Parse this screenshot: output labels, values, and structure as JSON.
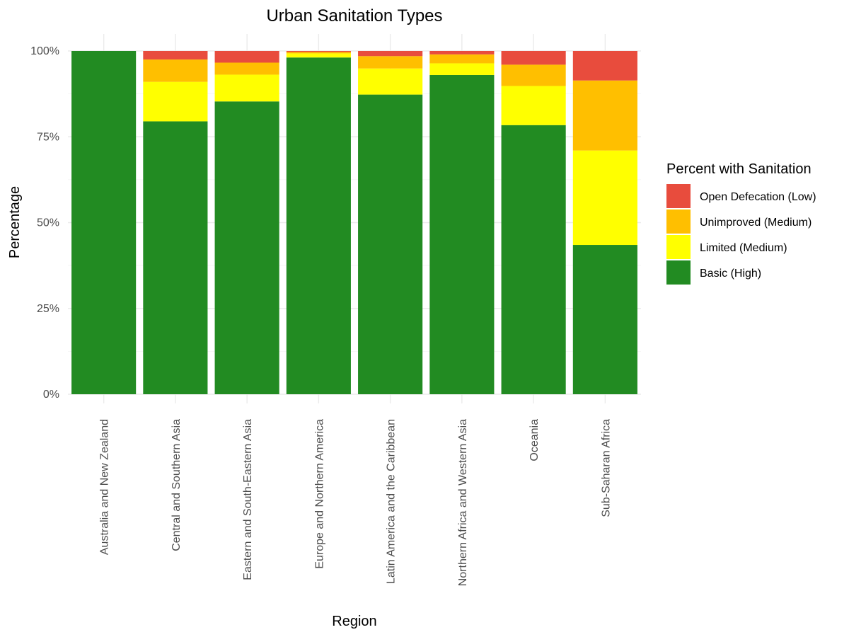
{
  "chart_data": {
    "type": "bar",
    "stacked": true,
    "title": "Urban Sanitation Types",
    "xlabel": "Region",
    "ylabel": "Percentage",
    "ylim": [
      0,
      100
    ],
    "y_ticks": [
      0,
      25,
      50,
      75,
      100
    ],
    "y_tick_labels": [
      "0%",
      "25%",
      "50%",
      "75%",
      "100%"
    ],
    "grid": true,
    "legend": {
      "title": "Percent with Sanitation",
      "position": "right"
    },
    "categories": [
      "Australia and New Zealand",
      "Central and Southern Asia",
      "Eastern and South-Eastern Asia",
      "Europe and Northern America",
      "Latin America and the Caribbean",
      "Northern Africa and Western Asia",
      "Oceania",
      "Sub-Saharan Africa"
    ],
    "series": [
      {
        "name": "Basic (High)",
        "color": "#228B22",
        "values": [
          100,
          79.5,
          85.3,
          98.1,
          87.3,
          93.0,
          78.4,
          43.5
        ]
      },
      {
        "name": "Limited (Medium)",
        "color": "#FFFF00",
        "values": [
          0,
          11.5,
          7.8,
          1.2,
          7.6,
          3.4,
          11.4,
          27.5
        ]
      },
      {
        "name": "Unimproved (Medium)",
        "color": "#FFBF00",
        "values": [
          0,
          6.5,
          3.5,
          0.4,
          3.6,
          2.6,
          6.2,
          20.4
        ]
      },
      {
        "name": "Open Defecation (Low)",
        "color": "#E84C3D",
        "values": [
          0,
          2.5,
          3.4,
          0.3,
          1.5,
          1.0,
          4.0,
          8.6
        ]
      }
    ]
  }
}
